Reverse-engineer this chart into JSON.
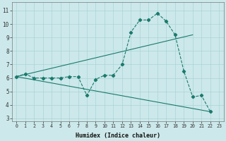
{
  "line1_x": [
    0,
    1,
    2,
    3,
    4,
    5,
    6,
    7,
    8,
    9,
    10,
    11,
    12,
    13,
    14,
    15,
    16,
    17,
    18,
    19,
    20,
    21,
    22
  ],
  "line1_y": [
    6.1,
    6.3,
    6.0,
    6.0,
    6.0,
    6.0,
    6.1,
    6.1,
    4.7,
    5.9,
    6.2,
    6.2,
    7.0,
    9.4,
    10.3,
    10.3,
    10.8,
    10.2,
    9.2,
    6.5,
    4.6,
    4.7,
    3.5
  ],
  "line2_endpoints_x": [
    0,
    20
  ],
  "line2_endpoints_y": [
    6.1,
    9.2
  ],
  "line3_endpoints_x": [
    0,
    22
  ],
  "line3_endpoints_y": [
    6.1,
    3.5
  ],
  "color": "#1a7a6e",
  "bg_color": "#cce8ea",
  "grid_color": "#aad4d7",
  "xlabel": "Humidex (Indice chaleur)",
  "ylim": [
    2.8,
    11.6
  ],
  "xlim": [
    -0.5,
    23.5
  ],
  "yticks": [
    3,
    4,
    5,
    6,
    7,
    8,
    9,
    10,
    11
  ],
  "xticks": [
    0,
    1,
    2,
    3,
    4,
    5,
    6,
    7,
    8,
    9,
    10,
    11,
    12,
    13,
    14,
    15,
    16,
    17,
    18,
    19,
    20,
    21,
    22,
    23
  ]
}
